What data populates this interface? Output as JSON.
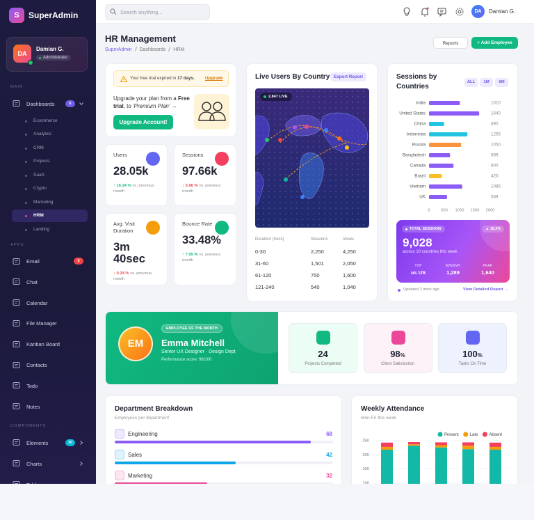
{
  "sidebar": {
    "logo": "S",
    "brand": "SuperAdmin",
    "user": {
      "initials": "DA",
      "name": "Damian G.",
      "role": "Administrator"
    },
    "sections": [
      {
        "title": "MAIN",
        "items": [
          {
            "label": "Dashboards",
            "badge": 6,
            "badge_color": "#6d5ce8",
            "children": [
              {
                "label": "Ecommerce"
              },
              {
                "label": "Analytics"
              },
              {
                "label": "CRM"
              },
              {
                "label": "Projects"
              },
              {
                "label": "SaaS"
              },
              {
                "label": "Crypto"
              },
              {
                "label": "Marketing"
              },
              {
                "label": "HRM",
                "active": true
              },
              {
                "label": "Landing"
              }
            ]
          }
        ]
      },
      {
        "title": "APPS",
        "items": [
          {
            "label": "Email",
            "badge": 5,
            "badge_color": "#ef4444"
          },
          {
            "label": "Chat"
          },
          {
            "label": "Calendar"
          },
          {
            "label": "File Manager"
          },
          {
            "label": "Kanban Board"
          },
          {
            "label": "Contacts"
          },
          {
            "label": "Todo"
          },
          {
            "label": "Notes"
          }
        ]
      },
      {
        "title": "COMPONENTS",
        "items": [
          {
            "label": "Elements",
            "badge": 30,
            "badge_color": "#06b6d4",
            "chevron": true
          },
          {
            "label": "Charts",
            "chevron": true
          },
          {
            "label": "Tables"
          }
        ]
      }
    ]
  },
  "topbar": {
    "search_placeholder": "Search anything...",
    "user_initials": "DA",
    "user_name": "Damian G."
  },
  "header": {
    "title": "HR Management",
    "breadcrumb": [
      "SuperAdmin",
      "Dashboards",
      "HRM"
    ],
    "reports_button": "Reports",
    "add_button": "+ Add Employee"
  },
  "trial": {
    "notice": "Your free trial expired in",
    "days": "17 days.",
    "link": "Upgrade",
    "text": "Upgrade your plan from a",
    "plan_from": "Free trial",
    "text2": ", to",
    "plan_to": "'Premium Plan' →",
    "button": "Upgrade Account!"
  },
  "stats": [
    {
      "label": "Users",
      "value": "28.05k",
      "change": "↑ 16.24 %",
      "note": "vs. previous month",
      "direction": "up",
      "color": "#6366f1"
    },
    {
      "label": "Sessions",
      "value": "97.66k",
      "change": "↓ 3.96 %",
      "note": "vs. previous month",
      "direction": "down",
      "color": "#f43f5e"
    },
    {
      "label": "Avg. Visit Duration",
      "value": "3m 40sec",
      "change": "↓ 0.24 %",
      "note": "vs. previous month",
      "direction": "down",
      "color": "#f59e0b"
    },
    {
      "label": "Bounce Rate",
      "value": "33.48%",
      "change": "↑ 7.05 %",
      "note": "vs. previous month",
      "direction": "up",
      "color": "#10b981"
    }
  ],
  "live": {
    "title": "Live Users By Country",
    "export": "Export Report",
    "live_badge": "2,847 LIVE",
    "table": {
      "headers": [
        "Duration (Secs)",
        "Sessions",
        "Views"
      ],
      "rows": [
        [
          "0-30",
          "2,250",
          "4,250"
        ],
        [
          "31-60",
          "1,501",
          "2,050"
        ],
        [
          "61-120",
          "750",
          "1,600"
        ],
        [
          "121-240",
          "540",
          "1,040"
        ]
      ]
    }
  },
  "chart_data": [
    {
      "type": "hbar",
      "title": "Sessions by Countries",
      "tabs": [
        "ALL",
        "1M",
        "6M"
      ],
      "categories": [
        "India",
        "United States",
        "China",
        "Indonesia",
        "Russia",
        "Bangladesh",
        "Canada",
        "Brazil",
        "Vietnam",
        "UK"
      ],
      "values": [
        1010,
        1640,
        490,
        1255,
        1050,
        689,
        800,
        420,
        1085,
        589
      ],
      "colors": [
        "#8b5cf6",
        "#8b5cf6",
        "#22c5e0",
        "#22c5e0",
        "#fb923c",
        "#8b5cf6",
        "#8b5cf6",
        "#fbbf24",
        "#8b5cf6",
        "#8b5cf6"
      ],
      "xlim": [
        0,
        2000
      ],
      "xticks": [
        0,
        500,
        1000,
        1500,
        2000
      ]
    },
    {
      "type": "stacked-bar",
      "title": "Weekly Attendance",
      "subtitle": "Mon-Fri this week",
      "categories": [
        null,
        null,
        null,
        null,
        null
      ],
      "series": [
        {
          "name": "Present",
          "color": "#14b8a6",
          "values": [
            218,
            232,
            226,
            220,
            218
          ]
        },
        {
          "name": "Late",
          "color": "#f59e0b",
          "values": [
            10,
            5,
            8,
            12,
            10
          ]
        },
        {
          "name": "Absent",
          "color": "#f43f5e",
          "values": [
            15,
            8,
            10,
            12,
            15
          ]
        }
      ],
      "ylim": [
        0,
        250
      ],
      "yticks": [
        100,
        150,
        200,
        250
      ],
      "grid": true,
      "legend": "top-right"
    }
  ],
  "summary": {
    "label": "TOTAL SESSIONS",
    "change": "▲ 18.2%",
    "value": "9,028",
    "note": "across 10 countries this week",
    "stats": [
      {
        "label": "TOP",
        "value": "us US"
      },
      {
        "label": "AVG/DAY",
        "value": "1,289"
      },
      {
        "label": "PEAK",
        "value": "1,640"
      }
    ],
    "updated": "Updated 2 mins ago",
    "link": "View Detailed Report →"
  },
  "employee": {
    "initials": "EM",
    "badge": "EMPLOYEE OF THE MONTH",
    "name": "Emma Mitchell",
    "role": "Senior UX Designer · Design Dept",
    "score": "Performance score: 98/100",
    "stats": [
      {
        "value": "24",
        "label": "Projects Completed",
        "color": "#10b981",
        "bg": "#ecfdf5"
      },
      {
        "value": "98",
        "unit": "%",
        "label": "Client Satisfaction",
        "color": "#ec4899",
        "bg": "#fdf2f8"
      },
      {
        "value": "100",
        "unit": "%",
        "label": "Tasks On Time",
        "color": "#6366f1",
        "bg": "#eef2ff"
      }
    ]
  },
  "departments": {
    "title": "Department Breakdown",
    "subtitle": "Employees per department",
    "items": [
      {
        "name": "Engineering",
        "count": 68,
        "color": "#8b5cf6"
      },
      {
        "name": "Sales",
        "count": 42,
        "color": "#0ea5e9"
      },
      {
        "name": "Marketing",
        "count": 32,
        "color": "#ec4899"
      }
    ]
  }
}
